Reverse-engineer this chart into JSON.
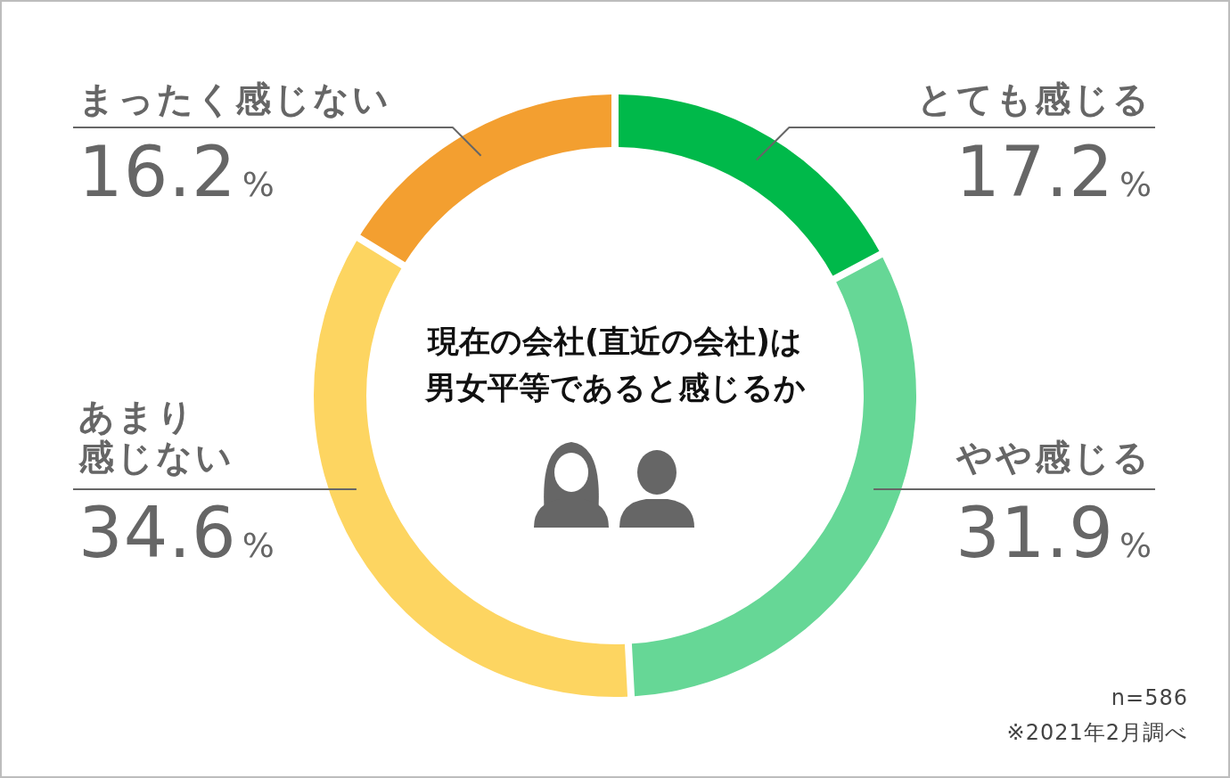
{
  "chart_data": {
    "type": "donut",
    "title": "現在の会社(直近の会社)は男女平等であると感じるか",
    "categories": [
      "とても感じる",
      "やや感じる",
      "あまり感じない",
      "まったく感じない"
    ],
    "values": [
      17.2,
      31.9,
      34.6,
      16.2
    ],
    "colors": [
      "#00b94a",
      "#66d796",
      "#fdd561",
      "#f39f30"
    ],
    "value_labels": [
      "17.2%",
      "31.9%",
      "34.6%",
      "16.2%"
    ],
    "annotations": [
      "n=586",
      "※2021年2月調べ"
    ]
  }
}
